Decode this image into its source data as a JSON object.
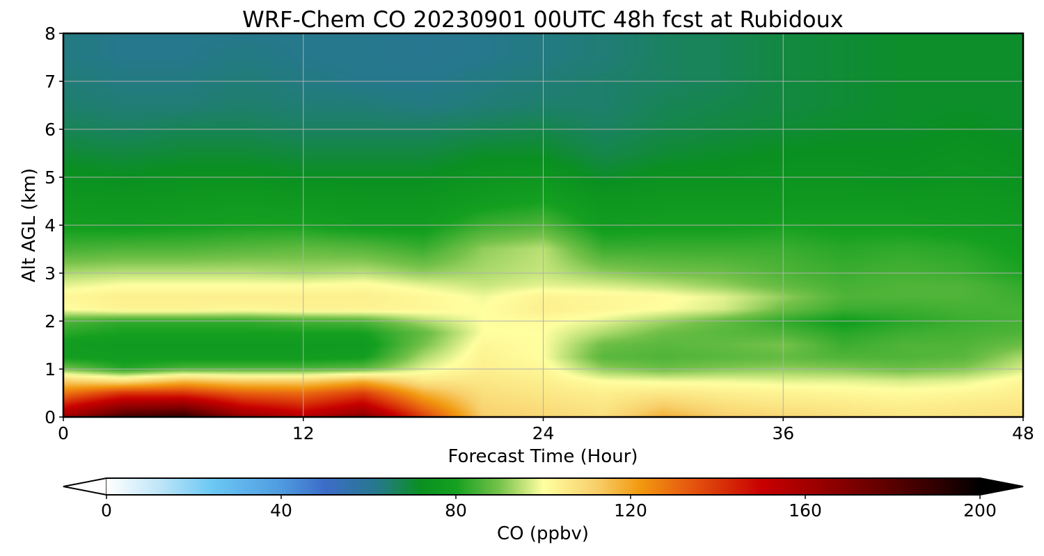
{
  "chart_data": {
    "type": "heatmap",
    "title": "WRF-Chem CO  20230901 00UTC 48h fcst at Rubidoux",
    "xlabel": "Forecast Time (Hour)",
    "ylabel": "Alt AGL (km)",
    "xlim": [
      0,
      48
    ],
    "ylim": [
      0,
      8
    ],
    "xticks": [
      0,
      12,
      24,
      36,
      48
    ],
    "yticks": [
      0,
      1,
      2,
      3,
      4,
      5,
      6,
      7,
      8
    ],
    "grid": true,
    "colorbar": {
      "label": "CO  (ppbv)",
      "range": [
        0,
        200
      ],
      "ticks": [
        0,
        40,
        80,
        120,
        160,
        200
      ],
      "extend": "both",
      "placement": "bottom",
      "colors": [
        {
          "v": 0,
          "c": "#ffffff"
        },
        {
          "v": 12,
          "c": "#bfe6f7"
        },
        {
          "v": 24,
          "c": "#6cc8f4"
        },
        {
          "v": 40,
          "c": "#4f9be0"
        },
        {
          "v": 50,
          "c": "#3c6cc8"
        },
        {
          "v": 62,
          "c": "#26788c"
        },
        {
          "v": 72,
          "c": "#0a9020"
        },
        {
          "v": 80,
          "c": "#15a020"
        },
        {
          "v": 90,
          "c": "#76c24a"
        },
        {
          "v": 100,
          "c": "#ffffa0"
        },
        {
          "v": 112,
          "c": "#f8d06c"
        },
        {
          "v": 122,
          "c": "#f29a10"
        },
        {
          "v": 132,
          "c": "#e86010"
        },
        {
          "v": 150,
          "c": "#c80000"
        },
        {
          "v": 170,
          "c": "#800000"
        },
        {
          "v": 190,
          "c": "#300000"
        },
        {
          "v": 200,
          "c": "#000000"
        }
      ]
    },
    "x": [
      0,
      3,
      6,
      9,
      12,
      15,
      18,
      21,
      24,
      27,
      30,
      33,
      36,
      39,
      42,
      45,
      48
    ],
    "y": [
      0,
      0.25,
      0.5,
      0.75,
      1,
      1.25,
      1.5,
      1.75,
      2,
      2.25,
      2.5,
      2.75,
      3,
      3.5,
      4,
      4.5,
      5,
      5.5,
      6,
      6.5,
      7,
      7.5,
      8
    ],
    "values": [
      [
        160,
        185,
        190,
        165,
        155,
        168,
        138,
        112,
        110,
        108,
        118,
        112,
        110,
        108,
        106,
        107,
        108
      ],
      [
        145,
        162,
        165,
        148,
        142,
        152,
        128,
        110,
        108,
        106,
        112,
        108,
        106,
        105,
        104,
        105,
        106
      ],
      [
        128,
        140,
        140,
        132,
        130,
        138,
        118,
        108,
        106,
        104,
        106,
        104,
        103,
        102,
        101,
        102,
        104
      ],
      [
        112,
        108,
        116,
        112,
        112,
        118,
        106,
        106,
        104,
        100,
        99,
        99,
        98,
        98,
        97,
        98,
        102
      ],
      [
        90,
        82,
        86,
        86,
        86,
        88,
        98,
        104,
        102,
        92,
        89,
        91,
        92,
        91,
        89,
        91,
        97
      ],
      [
        79,
        78,
        78,
        78,
        78,
        79,
        94,
        103,
        100,
        87,
        86,
        87,
        88,
        86,
        86,
        87,
        94
      ],
      [
        78,
        77,
        77,
        77,
        77,
        77,
        90,
        102,
        100,
        89,
        87,
        88,
        90,
        84,
        86,
        86,
        89
      ],
      [
        82,
        80,
        80,
        80,
        80,
        80,
        88,
        100,
        100,
        94,
        89,
        87,
        86,
        82,
        84,
        85,
        86
      ],
      [
        86,
        83,
        83,
        83,
        85,
        86,
        94,
        100,
        101,
        98,
        93,
        88,
        83,
        79,
        82,
        84,
        85
      ],
      [
        100,
        103,
        103,
        102,
        103,
        103,
        102,
        100,
        104,
        102,
        100,
        97,
        89,
        84,
        84,
        85,
        85
      ],
      [
        102,
        104,
        104,
        104,
        104,
        104,
        102,
        99,
        103,
        102,
        101,
        98,
        92,
        86,
        86,
        86,
        84
      ],
      [
        98,
        100,
        100,
        100,
        100,
        101,
        98,
        96,
        98,
        97,
        95,
        92,
        88,
        85,
        86,
        86,
        83
      ],
      [
        94,
        95,
        95,
        95,
        94,
        95,
        92,
        94,
        96,
        92,
        90,
        89,
        86,
        84,
        85,
        84,
        81
      ],
      [
        85,
        86,
        86,
        87,
        88,
        87,
        84,
        92,
        95,
        84,
        84,
        84,
        84,
        82,
        83,
        82,
        79
      ],
      [
        79,
        78,
        79,
        80,
        80,
        78,
        78,
        84,
        86,
        78,
        79,
        79,
        80,
        79,
        79,
        78,
        77
      ],
      [
        76,
        75,
        76,
        77,
        76,
        75,
        75,
        78,
        80,
        75,
        76,
        76,
        76,
        76,
        76,
        76,
        75
      ],
      [
        73,
        72,
        73,
        73,
        72,
        72,
        72,
        74,
        75,
        71,
        73,
        73,
        74,
        74,
        73,
        74,
        73
      ],
      [
        70,
        69,
        70,
        70,
        69,
        69,
        69,
        71,
        71,
        68,
        70,
        71,
        72,
        72,
        72,
        73,
        72
      ],
      [
        67,
        66,
        67,
        67,
        66,
        66,
        66,
        67,
        68,
        66,
        68,
        69,
        70,
        71,
        71,
        72,
        71
      ],
      [
        65,
        64,
        64,
        65,
        64,
        64,
        63,
        64,
        65,
        65,
        67,
        68,
        69,
        70,
        71,
        71,
        71
      ],
      [
        64,
        63,
        63,
        64,
        63,
        62,
        62,
        63,
        64,
        65,
        66,
        67,
        69,
        70,
        71,
        71,
        71
      ],
      [
        63,
        62,
        62,
        63,
        62,
        62,
        61,
        62,
        63,
        64,
        66,
        67,
        69,
        70,
        71,
        71,
        71
      ],
      [
        63,
        62,
        62,
        62,
        62,
        62,
        61,
        62,
        63,
        64,
        66,
        67,
        69,
        70,
        71,
        71,
        71
      ]
    ]
  }
}
